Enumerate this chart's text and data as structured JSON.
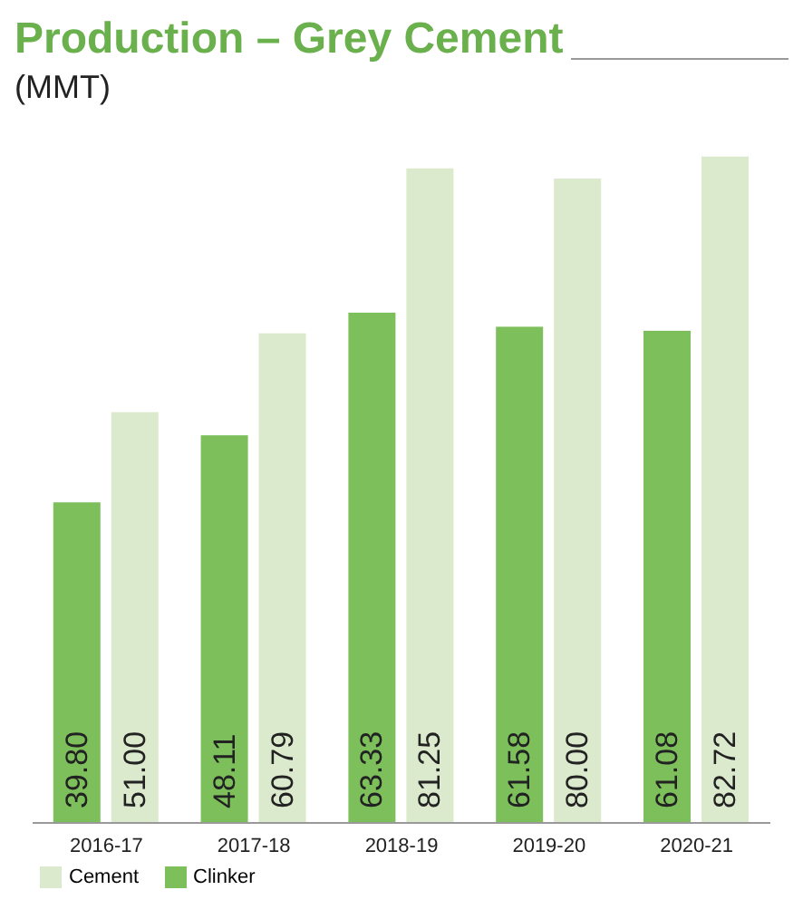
{
  "chart_data": {
    "type": "bar",
    "title": "Production – Grey Cement",
    "subtitle": "(MMT)",
    "categories": [
      "2016-17",
      "2017-18",
      "2018-19",
      "2019-20",
      "2020-21"
    ],
    "series": [
      {
        "name": "Clinker",
        "color": "#7cbf5b",
        "values": [
          39.8,
          48.11,
          63.33,
          61.58,
          61.08
        ],
        "value_labels": [
          "39.80",
          "48.11",
          "63.33",
          "61.58",
          "61.08"
        ]
      },
      {
        "name": "Cement",
        "color": "#dbe9cc",
        "values": [
          51.0,
          60.79,
          81.25,
          80.0,
          82.72
        ],
        "value_labels": [
          "51.00",
          "60.79",
          "81.25",
          "80.00",
          "82.72"
        ]
      }
    ],
    "legend": "bottom left",
    "grid": false
  }
}
